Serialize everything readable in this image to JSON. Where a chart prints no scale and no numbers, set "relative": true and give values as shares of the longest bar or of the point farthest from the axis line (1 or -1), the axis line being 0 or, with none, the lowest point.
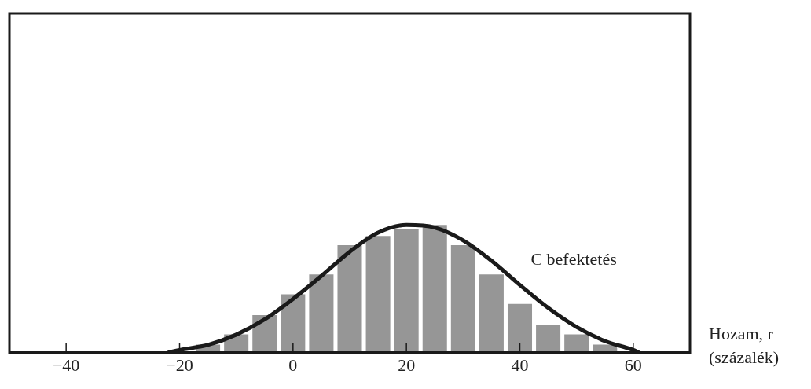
{
  "chart_data": {
    "type": "bar",
    "relative": true,
    "xlabel": "Hozam, r (százalék)",
    "xlim": [
      -50,
      70
    ],
    "xticks": [
      {
        "value": -40,
        "label": "−40"
      },
      {
        "value": -20,
        "label": "−20"
      },
      0,
      20,
      40,
      60
    ],
    "grid": false,
    "legend": false,
    "series": [
      {
        "color": "#969696",
        "x": [
          -15,
          -10,
          -5,
          0,
          5,
          10,
          15,
          20,
          25,
          30,
          35,
          40,
          45,
          50,
          55
        ],
        "values": [
          0.063,
          0.143,
          0.293,
          0.456,
          0.612,
          0.842,
          0.915,
          0.97,
          1,
          0.842,
          0.612,
          0.381,
          0.218,
          0.143,
          0.063
        ]
      },
      {
        "type": "line",
        "name": "C befektetés",
        "color": "#1a1a1a",
        "marker": "none",
        "line_style": "solid",
        "x": [
          -22,
          -20,
          -15,
          -10,
          -5,
          0,
          5,
          10,
          15,
          20,
          25,
          30,
          35,
          40,
          45,
          50,
          55,
          60,
          61
        ],
        "values": [
          0,
          0.02,
          0.06,
          0.14,
          0.26,
          0.42,
          0.6,
          0.79,
          0.94,
          1,
          0.98,
          0.88,
          0.72,
          0.53,
          0.35,
          0.2,
          0.09,
          0.02,
          0
        ]
      }
    ]
  }
}
